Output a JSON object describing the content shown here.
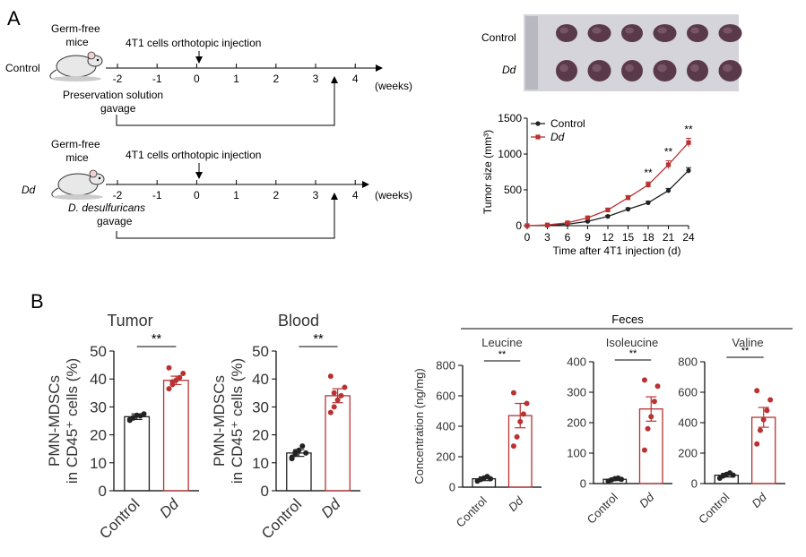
{
  "panel_labels": {
    "a": "A",
    "b": "B"
  },
  "timeline_control": {
    "row_label": "Control",
    "mouse_label": "Germ-free\nmice",
    "injection_label": "4T1 cells orthotopic injection",
    "weeks": [
      "-2",
      "-1",
      "0",
      "1",
      "2",
      "3",
      "4"
    ],
    "unit": "(weeks)",
    "gavage_label": "Preservation solution\ngavage"
  },
  "timeline_dd": {
    "row_label": "Dd",
    "mouse_label": "Germ-free\nmice",
    "injection_label": "4T1 cells orthotopic injection",
    "weeks": [
      "-2",
      "-1",
      "0",
      "1",
      "2",
      "3",
      "4"
    ],
    "unit": "(weeks)",
    "gavage_label": "D. desulfuricans\ngavage"
  },
  "photo": {
    "row_labels": [
      "Control",
      "Dd"
    ],
    "tumors_per_row": 6
  },
  "colors": {
    "control": "#222222",
    "dd": "#b83232",
    "photo_bg": "#cfcfd6",
    "tumor": "#5a3a4a"
  },
  "chart_data": [
    {
      "id": "tumor_growth",
      "type": "line",
      "title": "",
      "xlabel": "Time after 4T1 injection (d)",
      "ylabel": "Tumor size (mm³)",
      "x": [
        0,
        3,
        6,
        9,
        12,
        15,
        18,
        21,
        24
      ],
      "xticks": [
        "0",
        "3",
        "6",
        "9",
        "12",
        "15",
        "18",
        "21",
        "24"
      ],
      "yticks": [
        "0",
        "500",
        "1000",
        "1500"
      ],
      "xlim": [
        0,
        24
      ],
      "ylim": [
        0,
        1500
      ],
      "legend": "top-left",
      "series": [
        {
          "name": "Control",
          "values": [
            0,
            5,
            20,
            60,
            130,
            230,
            320,
            490,
            770
          ],
          "err": [
            0,
            3,
            5,
            8,
            12,
            18,
            22,
            30,
            40
          ]
        },
        {
          "name": "Dd",
          "values": [
            0,
            10,
            40,
            110,
            220,
            390,
            570,
            850,
            1160
          ],
          "err": [
            0,
            4,
            8,
            15,
            22,
            30,
            40,
            55,
            60
          ]
        }
      ],
      "annotations": [
        {
          "x": 18,
          "label": "**"
        },
        {
          "x": 21,
          "label": "**"
        },
        {
          "x": 24,
          "label": "**"
        }
      ]
    },
    {
      "id": "mdsc_tumor",
      "type": "bar",
      "title": "Tumor",
      "ylabel": "PMN-MDSCs\nin CD45⁺ cells (%)",
      "categories": [
        "Control",
        "Dd"
      ],
      "values": [
        26.5,
        39.5
      ],
      "err": [
        1.0,
        1.5
      ],
      "ylim": [
        0,
        50
      ],
      "yticks": [
        "0",
        "10",
        "20",
        "30",
        "40",
        "50"
      ],
      "points": [
        [
          25.5,
          26.2,
          27.0,
          26.8,
          27.5,
          25.2,
          26.0
        ],
        [
          36.5,
          38.0,
          39.5,
          40.5,
          42.0,
          44.0,
          39.0
        ]
      ],
      "significance": "**"
    },
    {
      "id": "mdsc_blood",
      "type": "bar",
      "title": "Blood",
      "ylabel": "PMN-MDSCs\nin CD45⁺ cells (%)",
      "categories": [
        "Control",
        "Dd"
      ],
      "values": [
        13.5,
        34.0
      ],
      "err": [
        1.2,
        2.5
      ],
      "ylim": [
        0,
        50
      ],
      "yticks": [
        "0",
        "10",
        "20",
        "30",
        "40",
        "50"
      ],
      "points": [
        [
          11.5,
          13.0,
          14.5,
          16.0,
          13.5,
          12.0,
          14.0
        ],
        [
          28.0,
          30.0,
          32.5,
          34.0,
          37.0,
          41.0,
          35.0
        ]
      ],
      "significance": "**"
    },
    {
      "id": "feces_leucine",
      "type": "bar",
      "title": "Leucine",
      "group_title": "Feces",
      "ylabel": "Concentration (ng/mg)",
      "categories": [
        "Control",
        "Dd"
      ],
      "values": [
        55,
        470
      ],
      "err": [
        12,
        80
      ],
      "ylim": [
        0,
        800
      ],
      "yticks": [
        "0",
        "200",
        "400",
        "600",
        "800"
      ],
      "points": [
        [
          40,
          50,
          60,
          70,
          55
        ],
        [
          270,
          330,
          430,
          480,
          550,
          620
        ]
      ],
      "significance": "**"
    },
    {
      "id": "feces_isoleucine",
      "type": "bar",
      "title": "Isoleucine",
      "categories": [
        "Control",
        "Dd"
      ],
      "values": [
        14,
        245
      ],
      "err": [
        4,
        40
      ],
      "ylim": [
        0,
        400
      ],
      "yticks": [
        "0",
        "100",
        "200",
        "300",
        "400"
      ],
      "points": [
        [
          8,
          12,
          16,
          18,
          14
        ],
        [
          110,
          180,
          220,
          270,
          320,
          340
        ]
      ],
      "significance": "**"
    },
    {
      "id": "feces_valine",
      "type": "bar",
      "title": "Valine",
      "categories": [
        "Control",
        "Dd"
      ],
      "values": [
        55,
        435
      ],
      "err": [
        12,
        65
      ],
      "ylim": [
        0,
        800
      ],
      "yticks": [
        "0",
        "200",
        "400",
        "600",
        "800"
      ],
      "points": [
        [
          35,
          50,
          60,
          70,
          55
        ],
        [
          260,
          350,
          420,
          480,
          550,
          610
        ]
      ],
      "significance": "**"
    }
  ]
}
